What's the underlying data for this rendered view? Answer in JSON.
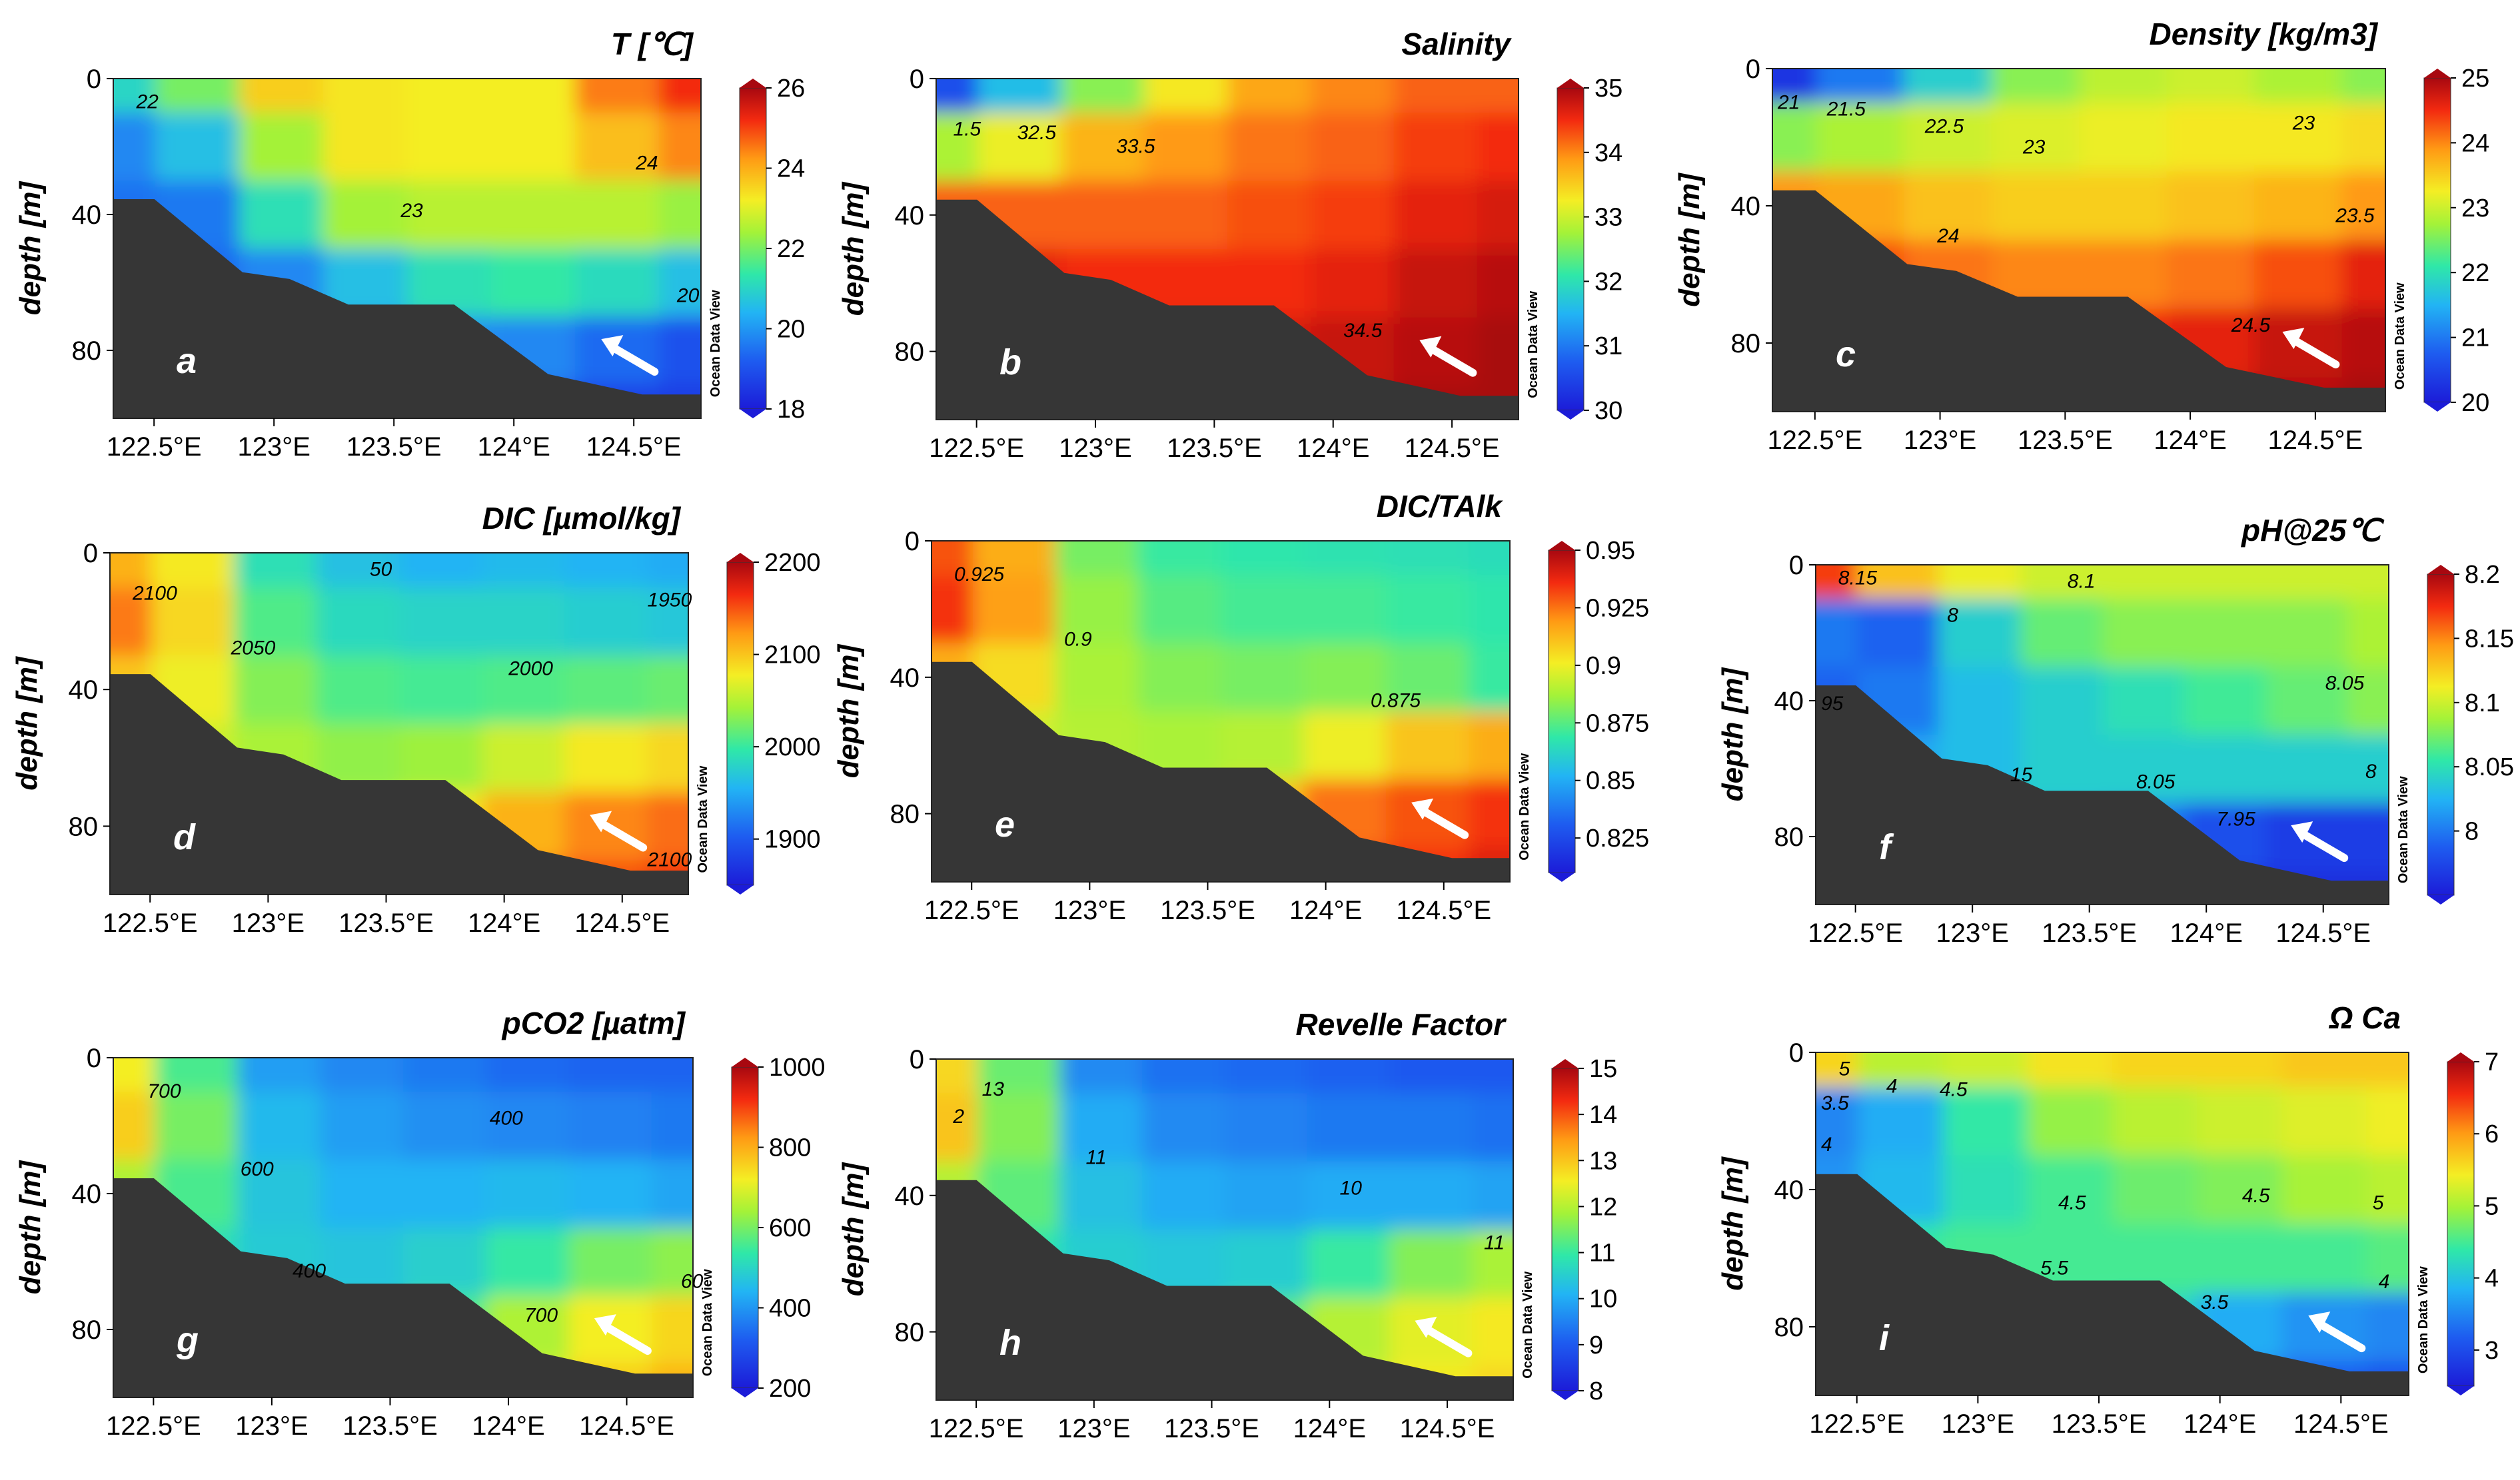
{
  "figure": {
    "source_note": "Ocean Data View",
    "shared_x_ticks": [
      "122.5°E",
      "123°E",
      "123.5°E",
      "124°E",
      "124.5°E"
    ],
    "shared_y_ticks": [
      "0",
      "40",
      "80"
    ],
    "shared_y_label": "depth [m]"
  },
  "chart_data": [
    {
      "type": "heatmap",
      "panel": "a",
      "title": "T [℃]",
      "ylabel": "depth [m]",
      "xlabel": "",
      "x_ticks": [
        "122.5°E",
        "123°E",
        "123.5°E",
        "124°E",
        "124.5°E"
      ],
      "y_ticks": [
        "0",
        "40",
        "80"
      ],
      "ylim": [
        0,
        100
      ],
      "colorbar": {
        "min": 18,
        "max": 26,
        "ticks": [
          "18",
          "20",
          "22",
          "24",
          "26"
        ]
      },
      "contour_labels": [
        "22",
        "23",
        "24",
        "20"
      ],
      "field": [
        [
          21,
          22,
          23.6,
          23.3,
          23.2,
          23.2,
          24.5,
          25.2
        ],
        [
          19.8,
          20.6,
          22.4,
          23.3,
          23.2,
          23.2,
          23.8,
          24.4
        ],
        [
          19.5,
          19.6,
          21.2,
          22.4,
          22.6,
          22.6,
          22.6,
          22.3
        ],
        [
          19.5,
          19.4,
          19.8,
          20.6,
          21.2,
          21.4,
          21.1,
          20.6
        ],
        [
          19.5,
          19.4,
          19.3,
          19.6,
          19.9,
          19.8,
          19.4,
          19
        ],
        [
          19.5,
          19.4,
          19.3,
          19.2,
          19.1,
          18.9,
          18.7,
          18.6
        ]
      ]
    },
    {
      "type": "heatmap",
      "panel": "b",
      "title": "Salinity",
      "ylabel": "depth [m]",
      "xlabel": "",
      "x_ticks": [
        "122.5°E",
        "123°E",
        "123.5°E",
        "124°E",
        "124.5°E"
      ],
      "y_ticks": [
        "0",
        "40",
        "80"
      ],
      "ylim": [
        0,
        100
      ],
      "colorbar": {
        "min": 30,
        "max": 35,
        "ticks": [
          "30",
          "31",
          "32",
          "33",
          "34",
          "35"
        ]
      },
      "contour_labels": [
        "1.5",
        "32.5",
        "33.5",
        "34.5"
      ],
      "field": [
        [
          30.6,
          31.6,
          32.6,
          33.3,
          33.8,
          34,
          34.2,
          34.2
        ],
        [
          32.8,
          33.2,
          33.7,
          33.9,
          34.1,
          34.2,
          34.4,
          34.5
        ],
        [
          34.2,
          34.2,
          34.2,
          34.2,
          34.3,
          34.4,
          34.6,
          34.7
        ],
        [
          34.6,
          34.6,
          34.5,
          34.5,
          34.5,
          34.6,
          34.8,
          34.9
        ],
        [
          34.7,
          34.7,
          34.7,
          34.7,
          34.7,
          34.8,
          34.9,
          35
        ],
        [
          34.8,
          34.8,
          34.8,
          34.8,
          34.8,
          34.9,
          35,
          35
        ]
      ]
    },
    {
      "type": "heatmap",
      "panel": "c",
      "title": "Density [kg/m3]",
      "ylabel": "depth [m]",
      "xlabel": "",
      "x_ticks": [
        "122.5°E",
        "123°E",
        "123.5°E",
        "124°E",
        "124.5°E"
      ],
      "y_ticks": [
        "0",
        "40",
        "80"
      ],
      "ylim": [
        0,
        100
      ],
      "colorbar": {
        "min": 20,
        "max": 25,
        "ticks": [
          "20",
          "21",
          "22",
          "23",
          "24",
          "25"
        ]
      },
      "contour_labels": [
        "21",
        "21.5",
        "22.5",
        "23",
        "23",
        "23.5",
        "24",
        "24.5"
      ],
      "field": [
        [
          20.3,
          21,
          21.8,
          22.6,
          22.9,
          23,
          22.8,
          22.6
        ],
        [
          22.6,
          22.8,
          23,
          23.1,
          23.2,
          23.3,
          23.3,
          23.4
        ],
        [
          23.9,
          23.8,
          23.6,
          23.5,
          23.5,
          23.6,
          23.7,
          23.9
        ],
        [
          24.4,
          24.3,
          24.1,
          24,
          24,
          24.1,
          24.3,
          24.6
        ],
        [
          24.6,
          24.6,
          24.5,
          24.5,
          24.5,
          24.6,
          24.8,
          24.9
        ],
        [
          24.7,
          24.7,
          24.7,
          24.7,
          24.7,
          24.8,
          24.9,
          25
        ]
      ]
    },
    {
      "type": "heatmap",
      "panel": "d",
      "title": "DIC [µmol/kg]",
      "ylabel": "depth [m]",
      "xlabel": "",
      "x_ticks": [
        "122.5°E",
        "123°E",
        "123.5°E",
        "124°E",
        "124.5°E"
      ],
      "y_ticks": [
        "0",
        "40",
        "80"
      ],
      "ylim": [
        0,
        100
      ],
      "colorbar": {
        "min": 1850,
        "max": 2200,
        "ticks": [
          "1900",
          "2000",
          "2100",
          "2200"
        ]
      },
      "contour_labels": [
        "50",
        "2100",
        "2050",
        "2000",
        "1950",
        "2100"
      ],
      "field": [
        [
          2110,
          2080,
          1990,
          1965,
          1955,
          1960,
          1955,
          1950
        ],
        [
          2135,
          2090,
          2010,
          1985,
          1980,
          1980,
          1975,
          1970
        ],
        [
          2100,
          2075,
          2030,
          2010,
          2005,
          2010,
          2015,
          2020
        ],
        [
          2075,
          2060,
          2045,
          2035,
          2040,
          2060,
          2080,
          2090
        ],
        [
          2060,
          2055,
          2050,
          2055,
          2080,
          2110,
          2130,
          2140
        ],
        [
          2050,
          2050,
          2055,
          2070,
          2110,
          2140,
          2150,
          2160
        ]
      ]
    },
    {
      "type": "heatmap",
      "panel": "e",
      "title": "DIC/TAlk",
      "ylabel": "depth [m]",
      "xlabel": "",
      "x_ticks": [
        "122.5°E",
        "123°E",
        "123.5°E",
        "124°E",
        "124.5°E"
      ],
      "y_ticks": [
        "0",
        "40",
        "80"
      ],
      "ylim": [
        0,
        100
      ],
      "colorbar": {
        "min": 0.81,
        "max": 0.95,
        "ticks": [
          "0.825",
          "0.85",
          "0.875",
          "0.9",
          "0.925",
          "0.95"
        ]
      },
      "contour_labels": [
        "0.925",
        "0.9",
        "0.875"
      ],
      "field": [
        [
          0.93,
          0.915,
          0.88,
          0.87,
          0.868,
          0.867,
          0.866,
          0.865
        ],
        [
          0.935,
          0.918,
          0.885,
          0.875,
          0.872,
          0.872,
          0.87,
          0.868
        ],
        [
          0.915,
          0.905,
          0.888,
          0.882,
          0.88,
          0.882,
          0.878,
          0.87
        ],
        [
          0.9,
          0.895,
          0.89,
          0.888,
          0.89,
          0.9,
          0.91,
          0.915
        ],
        [
          0.892,
          0.89,
          0.89,
          0.895,
          0.91,
          0.925,
          0.93,
          0.935
        ],
        [
          0.89,
          0.89,
          0.892,
          0.9,
          0.92,
          0.932,
          0.935,
          0.94
        ]
      ]
    },
    {
      "type": "heatmap",
      "panel": "f",
      "title": "pH@25℃",
      "ylabel": "depth [m]",
      "xlabel": "",
      "x_ticks": [
        "122.5°E",
        "123°E",
        "123.5°E",
        "124°E",
        "124.5°E"
      ],
      "y_ticks": [
        "0",
        "40",
        "80"
      ],
      "ylim": [
        0,
        100
      ],
      "colorbar": {
        "min": 7.95,
        "max": 8.2,
        "ticks": [
          "8",
          "8.05",
          "8.1",
          "8.15",
          "8.2"
        ]
      },
      "contour_labels": [
        "8.15",
        "8.1",
        "8",
        "95",
        "8.05",
        "15",
        "8.05",
        "7.95",
        "8"
      ],
      "field": [
        [
          8.17,
          8.13,
          8.11,
          8.1,
          8.1,
          8.1,
          8.1,
          8.1
        ],
        [
          8.0,
          7.99,
          8.04,
          8.07,
          8.08,
          8.08,
          8.08,
          8.09
        ],
        [
          7.99,
          8.0,
          8.03,
          8.04,
          8.05,
          8.06,
          8.07,
          8.08
        ],
        [
          8.0,
          8.02,
          8.03,
          8.04,
          8.04,
          8.04,
          8.04,
          8.04
        ],
        [
          8.01,
          8.02,
          8.02,
          8.02,
          8.0,
          7.98,
          7.97,
          7.97
        ],
        [
          8.01,
          8.02,
          8.02,
          8.0,
          7.98,
          7.96,
          7.96,
          7.96
        ]
      ]
    },
    {
      "type": "heatmap",
      "panel": "g",
      "title": "pCO2 [µatm]",
      "ylabel": "depth [m]",
      "xlabel": "",
      "x_ticks": [
        "122.5°E",
        "123°E",
        "123.5°E",
        "124°E",
        "124.5°E"
      ],
      "y_ticks": [
        "0",
        "40",
        "80"
      ],
      "ylim": [
        0,
        100
      ],
      "colorbar": {
        "min": 200,
        "max": 1000,
        "ticks": [
          "200",
          "400",
          "600",
          "800",
          "1000"
        ]
      },
      "contour_labels": [
        "700",
        "600",
        "400",
        "400",
        "700",
        "60"
      ],
      "field": [
        [
          720,
          560,
          410,
          380,
          360,
          340,
          330,
          330
        ],
        [
          760,
          600,
          450,
          410,
          390,
          380,
          370,
          360
        ],
        [
          650,
          560,
          470,
          440,
          440,
          450,
          440,
          420
        ],
        [
          560,
          520,
          480,
          470,
          490,
          540,
          600,
          620
        ],
        [
          510,
          500,
          490,
          500,
          560,
          650,
          720,
          750
        ],
        [
          490,
          490,
          500,
          520,
          600,
          700,
          760,
          790
        ]
      ]
    },
    {
      "type": "heatmap",
      "panel": "h",
      "title": "Revelle Factor",
      "ylabel": "depth [m]",
      "xlabel": "",
      "x_ticks": [
        "122.5°E",
        "123°E",
        "123.5°E",
        "124°E",
        "124.5°E"
      ],
      "y_ticks": [
        "0",
        "40",
        "80"
      ],
      "ylim": [
        0,
        100
      ],
      "colorbar": {
        "min": 8,
        "max": 15,
        "ticks": [
          "8",
          "9",
          "10",
          "11",
          "12",
          "13",
          "14",
          "15"
        ]
      },
      "contour_labels": [
        "13",
        "2",
        "11",
        "10",
        "11"
      ],
      "field": [
        [
          12.8,
          11.4,
          9.6,
          9.3,
          9.2,
          9.1,
          9.0,
          9.0
        ],
        [
          13.0,
          11.6,
          10.0,
          9.6,
          9.5,
          9.4,
          9.4,
          9.3
        ],
        [
          12.0,
          11.3,
          10.3,
          10.0,
          9.9,
          10.0,
          10.0,
          9.9
        ],
        [
          11.2,
          10.9,
          10.5,
          10.4,
          10.5,
          11.0,
          11.6,
          11.9
        ],
        [
          10.8,
          10.7,
          10.6,
          10.7,
          11.3,
          12.0,
          12.4,
          12.6
        ],
        [
          10.7,
          10.7,
          10.7,
          10.9,
          11.6,
          12.3,
          12.6,
          12.8
        ]
      ]
    },
    {
      "type": "heatmap",
      "panel": "i",
      "title": "Ω Ca",
      "ylabel": "depth [m]",
      "xlabel": "",
      "x_ticks": [
        "122.5°E",
        "123°E",
        "123.5°E",
        "124°E",
        "124.5°E"
      ],
      "y_ticks": [
        "0",
        "40",
        "80"
      ],
      "ylim": [
        0,
        100
      ],
      "colorbar": {
        "min": 2.5,
        "max": 7,
        "ticks": [
          "3",
          "4",
          "5",
          "6",
          "7"
        ]
      },
      "contour_labels": [
        "5",
        "4",
        "4.5",
        "3.5",
        "4",
        "4.5",
        "5.5",
        "4.5",
        "5",
        "4",
        "3.5"
      ],
      "field": [
        [
          5.6,
          5.1,
          5.2,
          5.5,
          5.6,
          5.6,
          5.7,
          5.7
        ],
        [
          3.5,
          3.8,
          4.4,
          4.9,
          5.1,
          5.2,
          5.3,
          5.4
        ],
        [
          3.6,
          3.9,
          4.3,
          4.5,
          4.7,
          4.8,
          5.0,
          5.1
        ],
        [
          4.3,
          4.4,
          4.5,
          4.5,
          4.5,
          4.5,
          4.5,
          4.6
        ],
        [
          4.5,
          4.5,
          4.5,
          4.4,
          4.2,
          3.8,
          3.6,
          3.5
        ],
        [
          4.5,
          4.5,
          4.4,
          4.2,
          3.8,
          3.4,
          3.2,
          3.1
        ]
      ]
    }
  ]
}
